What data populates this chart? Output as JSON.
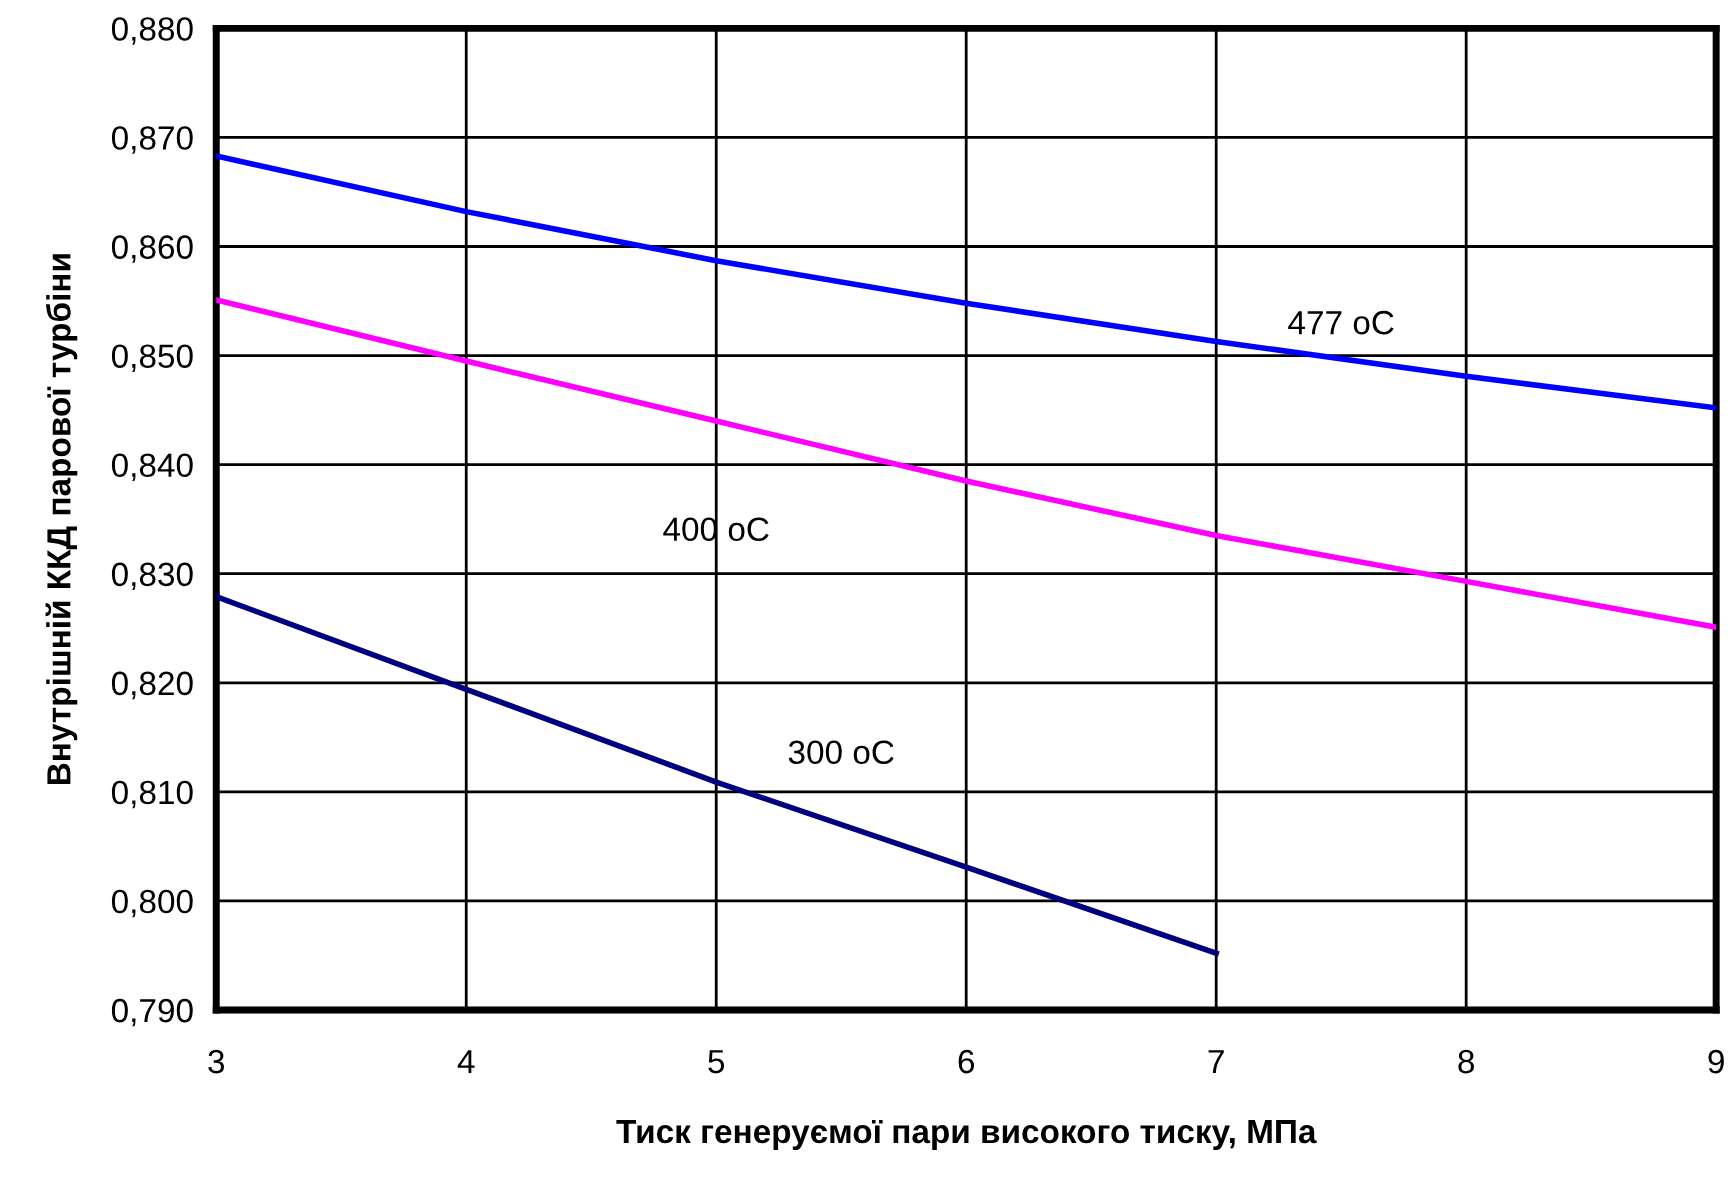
{
  "chart_data": {
    "type": "line",
    "xlabel": "Тиск генеруємої пари високого тиску, МПа",
    "ylabel": "Внутрішній ККД парової турбіни",
    "x": [
      3,
      4,
      5,
      6,
      7,
      8,
      9
    ],
    "series": [
      {
        "name": "477 оС",
        "color": "#0000ff",
        "values": [
          0.8683,
          0.8632,
          0.8587,
          0.8548,
          0.8513,
          0.8481,
          0.8452
        ]
      },
      {
        "name": "400 оС",
        "color": "#ff00ff",
        "values": [
          0.8551,
          0.8495,
          0.844,
          0.8385,
          0.8335,
          0.8293,
          0.8251
        ]
      },
      {
        "name": "300 оС",
        "color": "#000080",
        "x": [
          3,
          4,
          5,
          6,
          7
        ],
        "values": [
          0.8279,
          0.8194,
          0.8109,
          0.8031,
          0.7952
        ]
      }
    ],
    "xlim": [
      3,
      9
    ],
    "xticks": [
      3,
      4,
      5,
      6,
      7,
      8,
      9
    ],
    "ylim": [
      0.79,
      0.88
    ],
    "yticks": [
      {
        "value": 0.79,
        "label": "0,790"
      },
      {
        "value": 0.8,
        "label": "0,800"
      },
      {
        "value": 0.81,
        "label": "0,810"
      },
      {
        "value": 0.82,
        "label": "0,820"
      },
      {
        "value": 0.83,
        "label": "0,830"
      },
      {
        "value": 0.84,
        "label": "0,840"
      },
      {
        "value": 0.85,
        "label": "0,850"
      },
      {
        "value": 0.86,
        "label": "0,860"
      },
      {
        "value": 0.87,
        "label": "0,870"
      },
      {
        "value": 0.88,
        "label": "0,880"
      }
    ],
    "grid": true,
    "marker": "none",
    "line_style": "solid"
  }
}
